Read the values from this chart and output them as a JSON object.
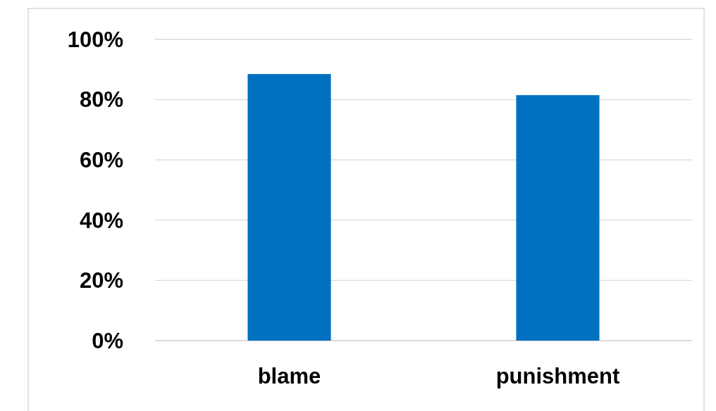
{
  "chart_data": {
    "type": "bar",
    "categories": [
      "blame",
      "punishment"
    ],
    "values": [
      88.5,
      81.5
    ],
    "color": "#0070c0",
    "ylim": [
      0,
      100
    ],
    "yticks": [
      {
        "value": 0,
        "label": "0%"
      },
      {
        "value": 20,
        "label": "20%"
      },
      {
        "value": 40,
        "label": "40%"
      },
      {
        "value": 60,
        "label": "60%"
      },
      {
        "value": 80,
        "label": "80%"
      },
      {
        "value": 100,
        "label": "100%"
      }
    ],
    "grid": "y"
  }
}
